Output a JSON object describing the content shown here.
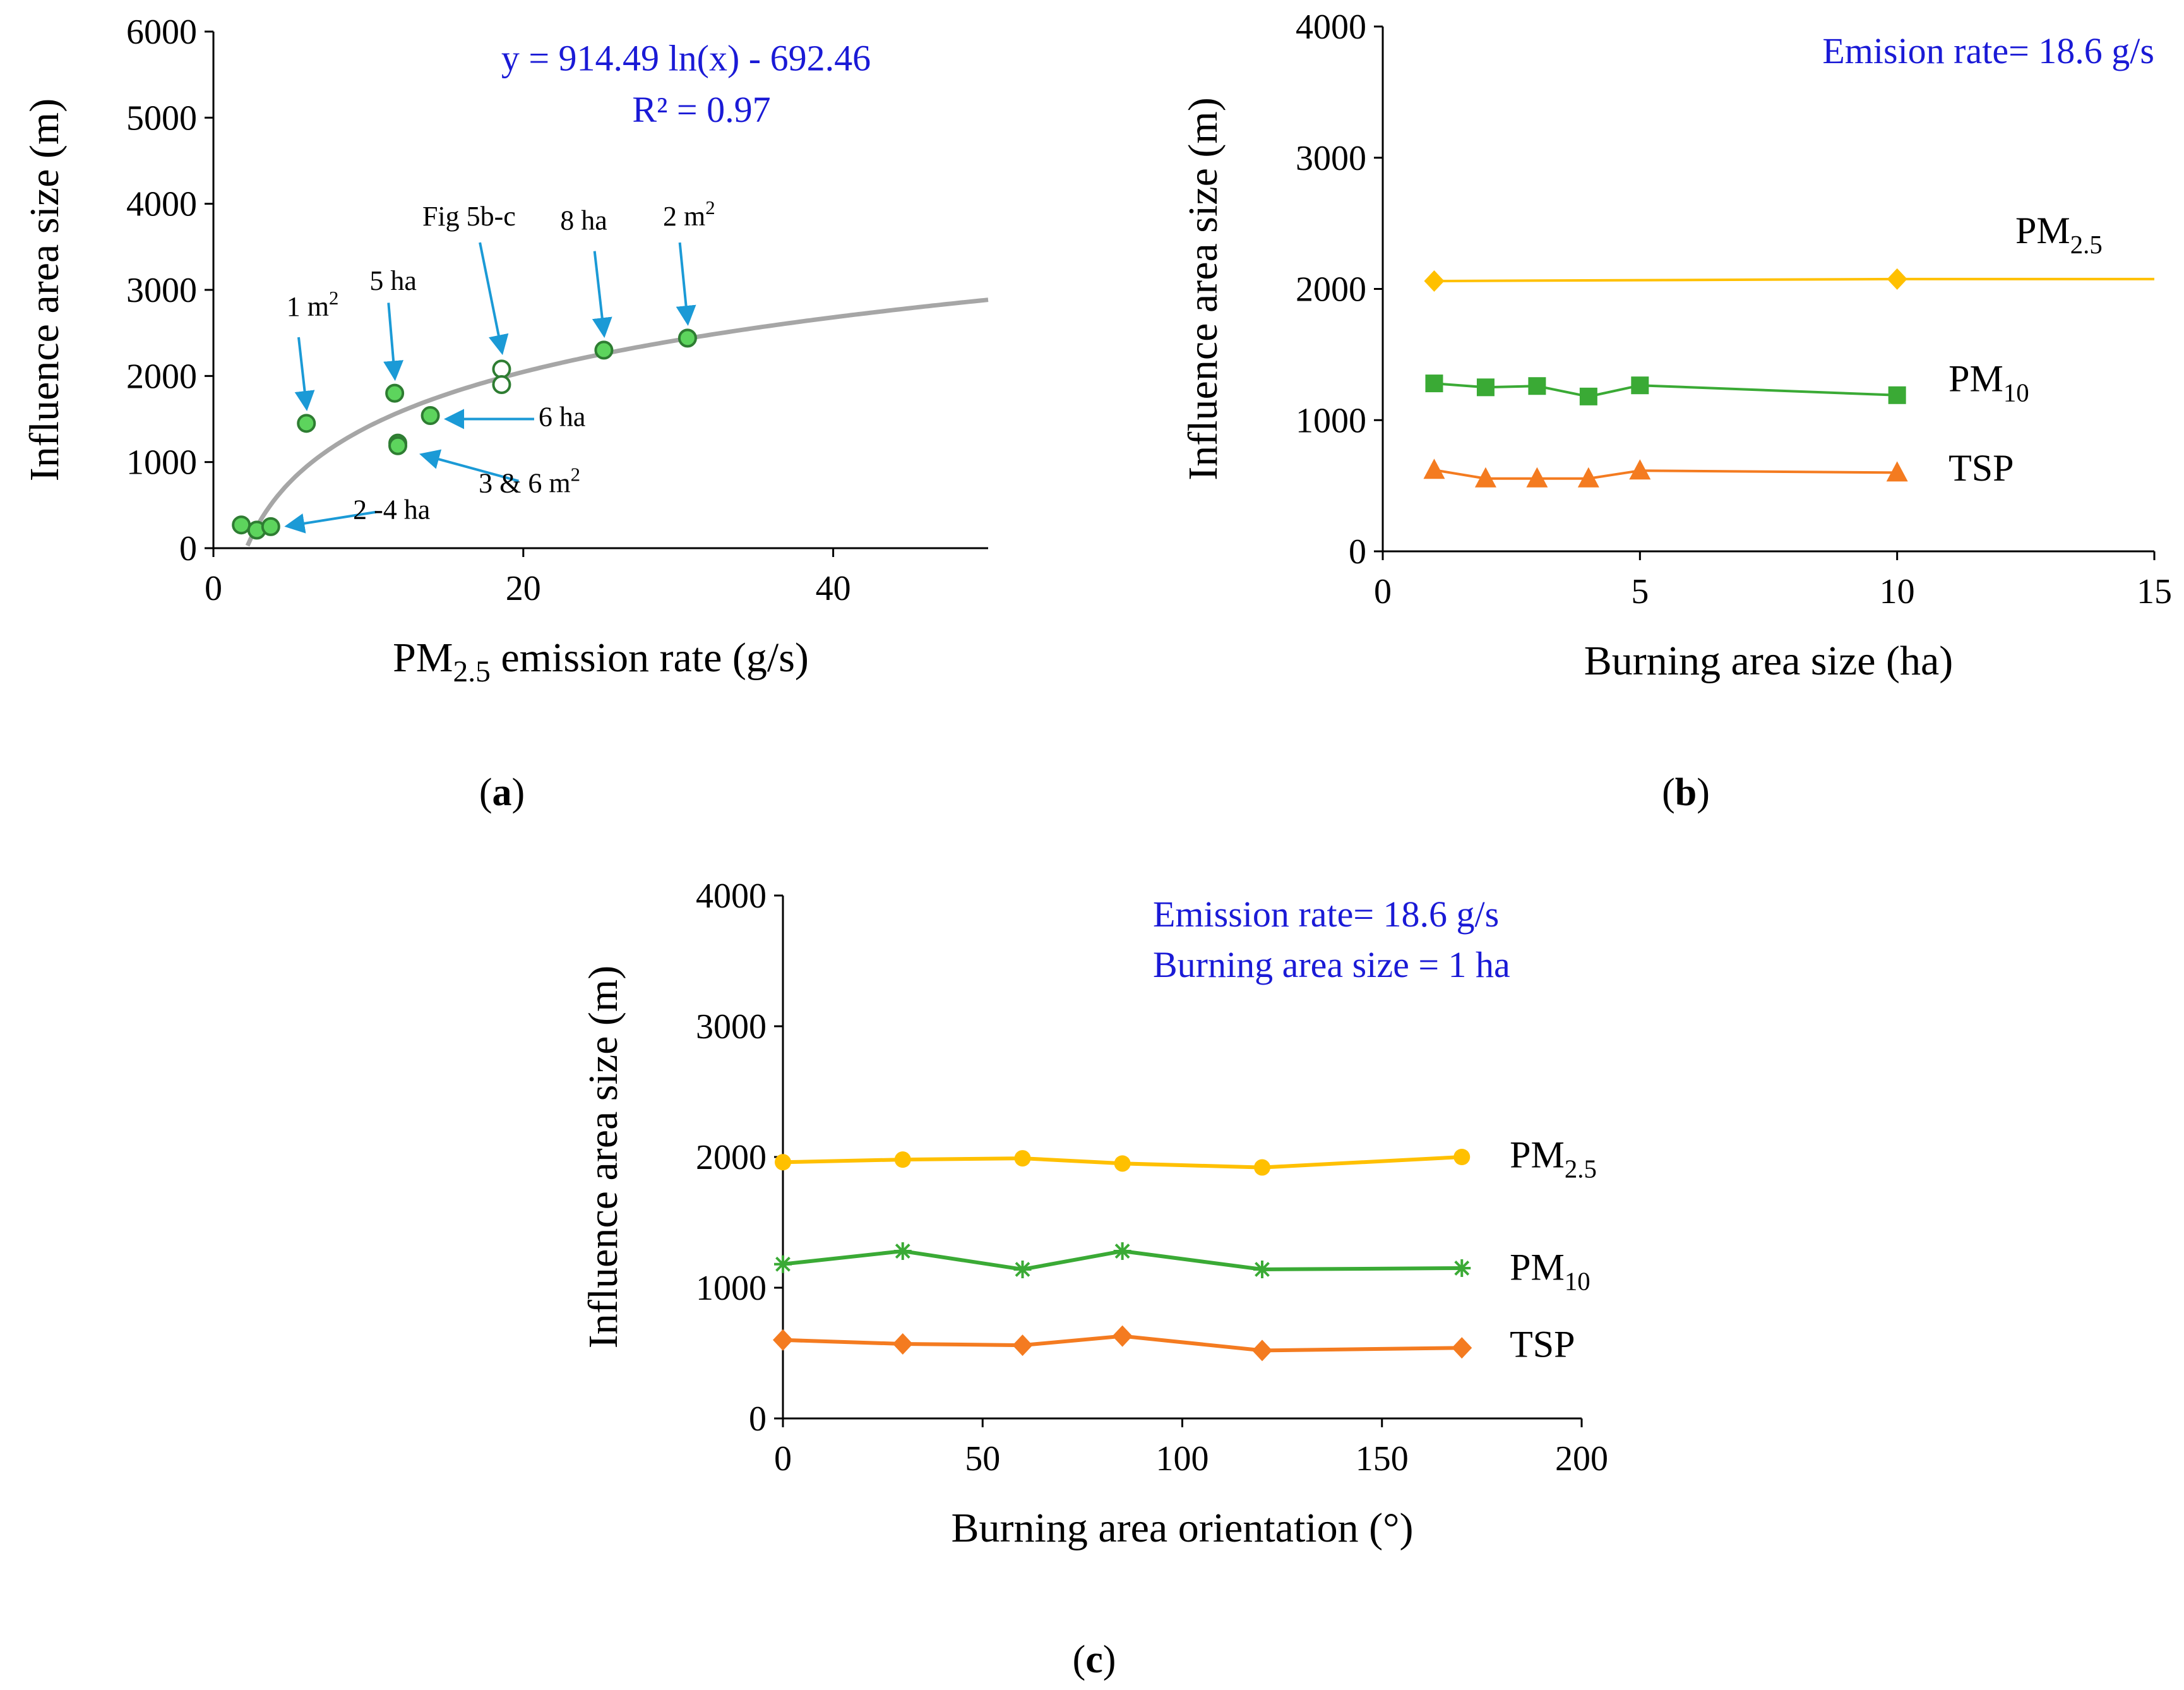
{
  "colors": {
    "blue_text": "#1a1ad6",
    "arrow": "#1b9ad6",
    "fit": "#a6a6a6",
    "pm25": "#ffc000",
    "pm10": "#3aaa35",
    "tsp": "#f47b20",
    "point_fill": "#5dd45d",
    "point_edge": "#2e7d32"
  },
  "chart_data": [
    {
      "panel": "a",
      "type": "scatter",
      "tag": "a",
      "xlabel_main": "PM",
      "xlabel_sub": "2.5",
      "xlabel_rest": " emission rate (g/s)",
      "ylabel": "Influence  area size (m)",
      "xlim": [
        0,
        50
      ],
      "ylim": [
        0,
        6000
      ],
      "xticks": [
        0,
        20,
        40
      ],
      "yticks": [
        0,
        1000,
        2000,
        3000,
        4000,
        5000,
        6000
      ],
      "equation": "y = 914.49 ln(x)  - 692.46",
      "r2": "R² = 0.97",
      "fit": {
        "a": 914.49,
        "b": -692.46,
        "x_start": 2.2,
        "x_end": 50
      },
      "points": [
        {
          "x": 1.8,
          "y": 270
        },
        {
          "x": 2.8,
          "y": 210
        },
        {
          "x": 3.7,
          "y": 250
        },
        {
          "x": 6.0,
          "y": 1450
        },
        {
          "x": 11.7,
          "y": 1800
        },
        {
          "x": 11.9,
          "y": 1220
        },
        {
          "x": 11.9,
          "y": 1190
        },
        {
          "x": 14.0,
          "y": 1540
        },
        {
          "x": 18.6,
          "y": 2080,
          "open": true
        },
        {
          "x": 18.6,
          "y": 1900,
          "open": true
        },
        {
          "x": 25.2,
          "y": 2300
        },
        {
          "x": 30.6,
          "y": 2440
        }
      ],
      "annotations": [
        {
          "text": "1 m",
          "sup": "2",
          "tx": 6.4,
          "ty": 2700,
          "ax": 6.0,
          "ay": 1650,
          "sx": 5.5,
          "sy": 2450
        },
        {
          "text": "5 ha",
          "sx": 11.3,
          "sy": 2850,
          "tx": 11.6,
          "ty": 3000,
          "ax": 11.7,
          "ay": 2000
        },
        {
          "text": "Fig 5b-c",
          "tx": 16.5,
          "ty": 3750,
          "sx": 17.2,
          "sy": 3550,
          "ax": 18.6,
          "ay": 2300
        },
        {
          "text": "8 ha",
          "tx": 23.9,
          "ty": 3700,
          "sx": 24.6,
          "sy": 3450,
          "ax": 25.2,
          "ay": 2500
        },
        {
          "text": "2 m",
          "sup": "2",
          "tx": 30.7,
          "ty": 3750,
          "sx": 30.1,
          "sy": 3550,
          "ax": 30.6,
          "ay": 2640
        },
        {
          "text": "6 ha",
          "tx": 22.5,
          "ty": 1420,
          "sx": 20.7,
          "sy": 1500,
          "ax": 15.2,
          "ay": 1500
        },
        {
          "text": "3 & 6 m",
          "sup": "2",
          "tx": 20.4,
          "ty": 650,
          "sx": 19.7,
          "sy": 780,
          "ax": 13.6,
          "ay": 1080
        },
        {
          "text": "2 -4 ha",
          "tx": 11.5,
          "ty": 340,
          "sx": 10.5,
          "sy": 420,
          "ax": 4.9,
          "ay": 260
        }
      ]
    },
    {
      "panel": "b",
      "type": "line",
      "tag": "b",
      "xlabel": "Burning area size (ha)",
      "ylabel": "Influence  area size (m)",
      "xlim": [
        0,
        15
      ],
      "ylim": [
        0,
        4000
      ],
      "xticks": [
        0,
        5,
        10,
        15
      ],
      "yticks": [
        0,
        1000,
        2000,
        3000,
        4000
      ],
      "note_lines": [
        "Emision rate= 18.6 g/s"
      ],
      "series": [
        {
          "name": "PM",
          "sub": "2.5",
          "marker": "diamond",
          "x": [
            1,
            10
          ],
          "y": [
            2060,
            2075
          ],
          "extend_to": 15,
          "extend_y": 2075,
          "label_x": 12.3,
          "label_y": 2350
        },
        {
          "name": "PM",
          "sub": "10",
          "marker": "square",
          "x": [
            1,
            2,
            3,
            4,
            5,
            10
          ],
          "y": [
            1280,
            1250,
            1260,
            1180,
            1265,
            1190
          ],
          "label_x": 11.0,
          "label_y": 1220
        },
        {
          "name": "TSP",
          "sub": "",
          "marker": "triangle",
          "x": [
            1,
            2,
            3,
            4,
            5,
            10
          ],
          "y": [
            620,
            555,
            555,
            555,
            615,
            600
          ],
          "label_x": 11.0,
          "label_y": 540
        }
      ]
    },
    {
      "panel": "c",
      "type": "line",
      "tag": "c",
      "xlabel": "Burning area orientation (°)",
      "ylabel": "Influence  area size (m)",
      "xlim": [
        0,
        200
      ],
      "ylim": [
        0,
        4000
      ],
      "xticks": [
        0,
        50,
        100,
        150,
        200
      ],
      "yticks": [
        0,
        1000,
        2000,
        3000,
        4000
      ],
      "note_lines": [
        "Emission rate= 18.6  g/s",
        "Burning  area size = 1 ha"
      ],
      "series": [
        {
          "name": "PM",
          "sub": "2.5",
          "marker": "circle",
          "x": [
            0,
            30,
            60,
            85,
            120,
            170
          ],
          "y": [
            1960,
            1980,
            1990,
            1950,
            1920,
            2000
          ],
          "label_x": 182,
          "label_y": 1920
        },
        {
          "name": "PM",
          "sub": "10",
          "marker": "star",
          "x": [
            0,
            30,
            60,
            85,
            120,
            170
          ],
          "y": [
            1180,
            1280,
            1140,
            1280,
            1140,
            1150
          ],
          "label_x": 182,
          "label_y": 1060
        },
        {
          "name": "TSP",
          "sub": "",
          "marker": "diamond",
          "x": [
            0,
            30,
            60,
            85,
            120,
            170
          ],
          "y": [
            600,
            570,
            560,
            630,
            520,
            540
          ],
          "label_x": 182,
          "label_y": 470
        }
      ]
    }
  ]
}
